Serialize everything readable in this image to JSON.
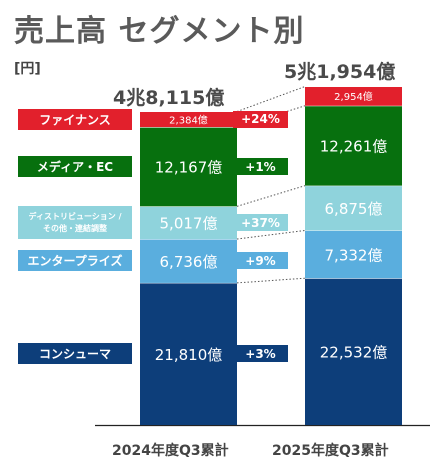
{
  "title": "売上高 セグメント別",
  "unit": "[円]",
  "chart_data": {
    "type": "bar",
    "stacked": true,
    "categories": [
      "2024年度Q3累計",
      "2025年度Q3累計"
    ],
    "totals": [
      "4兆8,115億",
      "5兆1,954億"
    ],
    "series": [
      {
        "name": "コンシューマ",
        "values": [
          21810,
          22532
        ],
        "labels": [
          "21,810億",
          "22,532億"
        ],
        "growth": "+3%",
        "color": "#0d3e7a"
      },
      {
        "name": "エンタープライズ",
        "values": [
          6736,
          7332
        ],
        "labels": [
          "6,736億",
          "7,332億"
        ],
        "growth": "+9%",
        "color": "#5aaede"
      },
      {
        "name_lines": [
          "ディストリビューション /",
          "その他・連結調整"
        ],
        "values": [
          5017,
          6875
        ],
        "labels": [
          "5,017億",
          "6,875億"
        ],
        "growth": "+37%",
        "color": "#8fd3dc"
      },
      {
        "name": "メディア・EC",
        "values": [
          12167,
          12261
        ],
        "labels": [
          "12,167億",
          "12,261億"
        ],
        "growth": "+1%",
        "color": "#07700e"
      },
      {
        "name": "ファイナンス",
        "values": [
          2384,
          2954
        ],
        "labels": [
          "2,384億",
          "2,954億"
        ],
        "growth": "+24%",
        "color": "#e2202c"
      }
    ],
    "legend": "left"
  }
}
